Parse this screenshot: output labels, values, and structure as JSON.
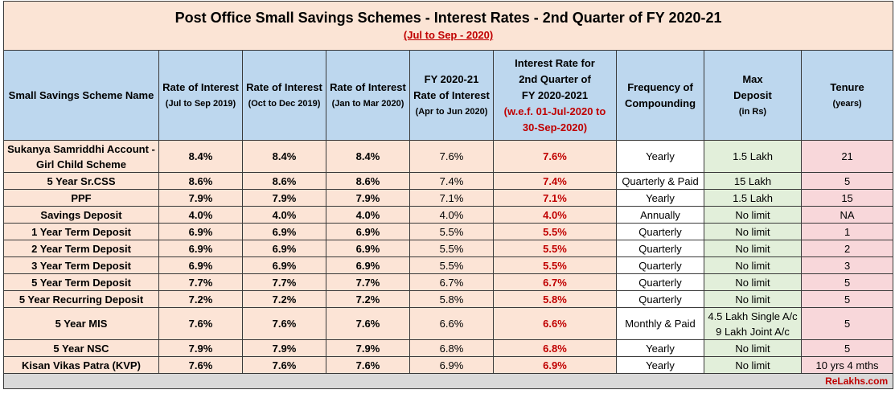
{
  "title": "Post Office Small Savings Schemes - Interest Rates - 2nd Quarter of FY 2020-21",
  "subtitle": "(Jul to Sep - 2020)",
  "headers": {
    "name": "Small Savings Scheme Name",
    "r1": {
      "line1": "Rate of Interest",
      "line2": "(Jul to Sep 2019)"
    },
    "r2": {
      "line1": "Rate of Interest",
      "line2": "(Oct to Dec 2019)"
    },
    "r3": {
      "line1": "Rate of Interest",
      "line2": "(Jan to Mar 2020)"
    },
    "r4": {
      "line1": "FY 2020-21",
      "line2": "Rate of Interest",
      "line3": "(Apr to Jun 2020)"
    },
    "r5": {
      "line1": "Interest Rate for",
      "line2": "2nd Quarter of",
      "line3": "FY 2020-2021",
      "line4": "(w.e.f. 01-Jul-2020 to",
      "line5": "30-Sep-2020)"
    },
    "freq": {
      "line1": "Frequency of",
      "line2": "Compounding"
    },
    "maxd": {
      "line1": "Max",
      "line2": "Deposit",
      "line3": "(in Rs)"
    },
    "tenure": {
      "line1": "Tenure",
      "line2": "(years)"
    }
  },
  "rows": [
    {
      "name": "Sukanya Samriddhi Account - Girl Child Scheme",
      "r1": "8.4%",
      "r2": "8.4%",
      "r3": "8.4%",
      "r4": "7.6%",
      "r5": "7.6%",
      "freq": "Yearly",
      "maxd": "1.5 Lakh",
      "tenure": "21"
    },
    {
      "name": "5 Year Sr.CSS",
      "r1": "8.6%",
      "r2": "8.6%",
      "r3": "8.6%",
      "r4": "7.4%",
      "r5": "7.4%",
      "freq": "Quarterly & Paid",
      "maxd": "15 Lakh",
      "tenure": "5"
    },
    {
      "name": "PPF",
      "r1": "7.9%",
      "r2": "7.9%",
      "r3": "7.9%",
      "r4": "7.1%",
      "r5": "7.1%",
      "freq": "Yearly",
      "maxd": "1.5 Lakh",
      "tenure": "15"
    },
    {
      "name": "Savings Deposit",
      "r1": "4.0%",
      "r2": "4.0%",
      "r3": "4.0%",
      "r4": "4.0%",
      "r5": "4.0%",
      "freq": "Annually",
      "maxd": "No limit",
      "tenure": "NA"
    },
    {
      "name": "1 Year Term Deposit",
      "r1": "6.9%",
      "r2": "6.9%",
      "r3": "6.9%",
      "r4": "5.5%",
      "r5": "5.5%",
      "freq": "Quarterly",
      "maxd": "No limit",
      "tenure": "1"
    },
    {
      "name": "2 Year Term Deposit",
      "r1": "6.9%",
      "r2": "6.9%",
      "r3": "6.9%",
      "r4": "5.5%",
      "r5": "5.5%",
      "freq": "Quarterly",
      "maxd": "No limit",
      "tenure": "2"
    },
    {
      "name": "3 Year Term Deposit",
      "r1": "6.9%",
      "r2": "6.9%",
      "r3": "6.9%",
      "r4": "5.5%",
      "r5": "5.5%",
      "freq": "Quarterly",
      "maxd": "No limit",
      "tenure": "3"
    },
    {
      "name": "5 Year Term Deposit",
      "r1": "7.7%",
      "r2": "7.7%",
      "r3": "7.7%",
      "r4": "6.7%",
      "r5": "6.7%",
      "freq": "Quarterly",
      "maxd": "No limit",
      "tenure": "5"
    },
    {
      "name": "5 Year Recurring Deposit",
      "r1": "7.2%",
      "r2": "7.2%",
      "r3": "7.2%",
      "r4": "5.8%",
      "r5": "5.8%",
      "freq": "Quarterly",
      "maxd": "No limit",
      "tenure": "5"
    },
    {
      "name": "5 Year MIS",
      "r1": "7.6%",
      "r2": "7.6%",
      "r3": "7.6%",
      "r4": "6.6%",
      "r5": "6.6%",
      "freq": "Monthly & Paid",
      "maxd": "4.5 Lakh Single A/c 9 Lakh Joint A/c",
      "tenure": "5"
    },
    {
      "name": "5 Year NSC",
      "r1": "7.9%",
      "r2": "7.9%",
      "r3": "7.9%",
      "r4": "6.8%",
      "r5": "6.8%",
      "freq": "Yearly",
      "maxd": "No limit",
      "tenure": "5"
    },
    {
      "name": "Kisan Vikas Patra (KVP)",
      "r1": "7.6%",
      "r2": "7.6%",
      "r3": "7.6%",
      "r4": "6.9%",
      "r5": "6.9%",
      "freq": "Yearly",
      "maxd": "No limit",
      "tenure": "10 yrs 4 mths"
    }
  ],
  "footer": "ReLakhs.com"
}
